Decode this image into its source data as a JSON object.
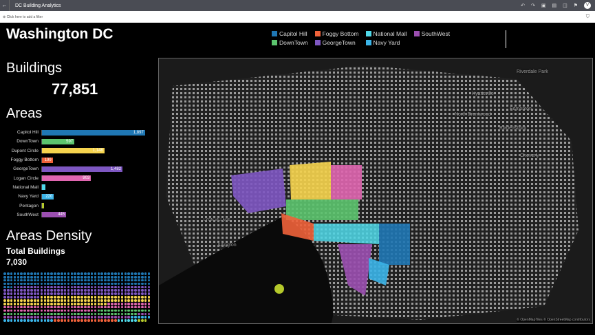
{
  "app": {
    "title": "DC Building Analytics",
    "avatar": "V",
    "filter_placeholder": "Click here to add a filter"
  },
  "dashboard": {
    "title": "Washington DC",
    "buildings_label": "Buildings",
    "buildings_value": "77,851",
    "areas_label": "Areas",
    "density_label": "Areas Density",
    "total_label": "Total Buildings",
    "total_value": "7,030"
  },
  "legend": [
    {
      "name": "Capitol Hill",
      "color": "#1f77b4"
    },
    {
      "name": "Foggy Bottom",
      "color": "#f0623a"
    },
    {
      "name": "National Mall",
      "color": "#4fd8e8"
    },
    {
      "name": "SouthWest",
      "color": "#9b4fb0"
    },
    {
      "name": "DownTown",
      "color": "#5cc46e"
    },
    {
      "name": "GeorgeTown",
      "color": "#7e57c2"
    },
    {
      "name": "Navy Yard",
      "color": "#3bb4e8"
    }
  ],
  "chart_data": {
    "type": "bar",
    "orientation": "horizontal",
    "categories": [
      "Capitol Hill",
      "DownTown",
      "Dupont Circle",
      "Foggy Bottom",
      "GeorgeTown",
      "Logan Circle",
      "National Mall",
      "Navy Yard",
      "Pentagon",
      "SouthWest"
    ],
    "values": [
      1897,
      597,
      1148,
      199,
      1482,
      903,
      63,
      220,
      35,
      445
    ],
    "labels": [
      "1,897",
      "597",
      "1,148",
      "199",
      "1,482",
      "903",
      "",
      "220",
      "",
      "445"
    ],
    "colors": [
      "#1f77b4",
      "#5cc46e",
      "#f6d44e",
      "#f0623a",
      "#7e57c2",
      "#e066b0",
      "#4fd8e8",
      "#3bb4e8",
      "#b5c92b",
      "#9b4fb0"
    ],
    "xlim": [
      0,
      1950
    ]
  },
  "density_order": [
    0,
    4,
    2,
    5,
    1,
    9,
    7,
    3,
    6,
    8
  ],
  "map": {
    "attribution": "© OpenMapTiles © OpenStreetMap contributors",
    "places": [
      "Riverdale Park",
      "Hyattsville",
      "Edmonton",
      "North Brentwood",
      "Bladensburg",
      "Cheverly",
      "Arlington",
      "Lyon Village"
    ]
  }
}
